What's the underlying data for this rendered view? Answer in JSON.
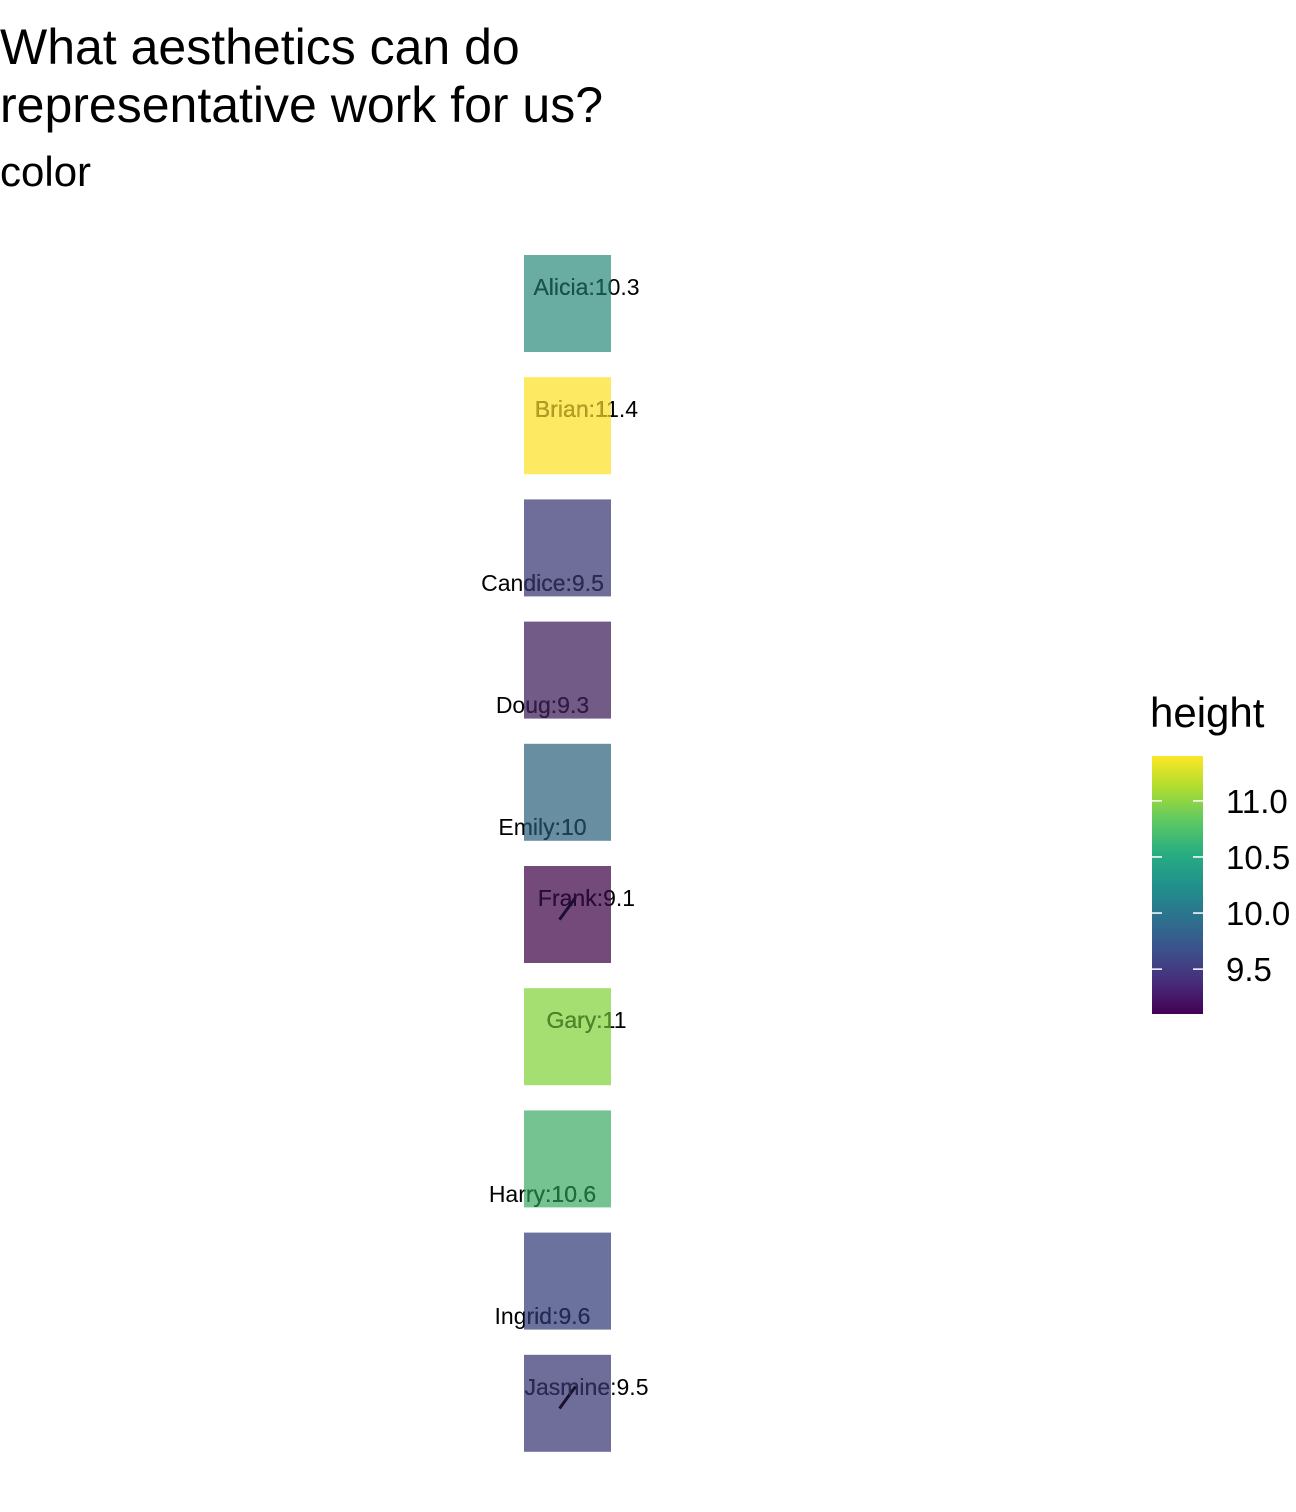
{
  "title": "What aesthetics can do\nrepresentative work for us?",
  "subtitle": "color",
  "chart_data": {
    "type": "tile",
    "fill_variable": "height",
    "legend": {
      "title": "height",
      "position": "right",
      "scale": "viridis",
      "range": [
        9.1,
        11.4
      ],
      "ticks": [
        11.0,
        10.5,
        10.0,
        9.5
      ],
      "tick_labels": [
        "11.0",
        "10.5",
        "10.0",
        "9.5"
      ]
    },
    "grid": false,
    "items": [
      {
        "name": "Alicia",
        "value": 10.3,
        "label": "Alicia:10.3",
        "label_position": "top",
        "color": "#69ADA2",
        "label_color": "#17544d"
      },
      {
        "name": "Brian",
        "value": 11.4,
        "label": "Brian:11.4",
        "label_position": "top",
        "color": "#FDE962",
        "label_color": "#b6a020"
      },
      {
        "name": "Candice",
        "value": 9.5,
        "label": "Candice:9.5",
        "label_position": "bottom",
        "color": "#6F6D9A",
        "label_color": "#2a2a55"
      },
      {
        "name": "Doug",
        "value": 9.3,
        "label": "Doug:9.3",
        "label_position": "bottom",
        "color": "#735B88",
        "label_color": "#2e1c48"
      },
      {
        "name": "Emily",
        "value": 10,
        "label": "Emily:10",
        "label_position": "bottom",
        "color": "#678FA1",
        "label_color": "#1d4055"
      },
      {
        "name": "Frank",
        "value": 9.1,
        "label": "Frank:9.1",
        "label_position": "top",
        "color": "#734A7A",
        "label_color": "#2a0a3a",
        "slash": true
      },
      {
        "name": "Gary",
        "value": 11,
        "label": "Gary:11",
        "label_position": "top",
        "color": "#A5DE71",
        "label_color": "#4a8a28"
      },
      {
        "name": "Harry",
        "value": 10.6,
        "label": "Harry:10.6",
        "label_position": "bottom",
        "color": "#76C392",
        "label_color": "#1e6e3c"
      },
      {
        "name": "Ingrid",
        "value": 9.6,
        "label": "Ingrid:9.6",
        "label_position": "bottom",
        "color": "#6B729E",
        "label_color": "#222a55"
      },
      {
        "name": "Jasmine",
        "value": 9.5,
        "label": "Jasmine:9.5",
        "label_position": "top",
        "color": "#6F6D9A",
        "label_color": "#2a2a55",
        "slash": true
      }
    ]
  }
}
